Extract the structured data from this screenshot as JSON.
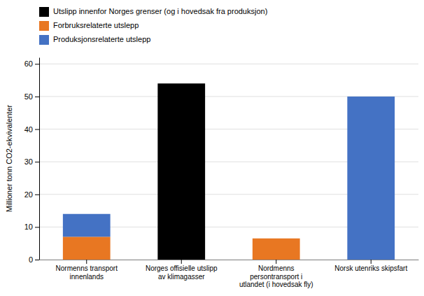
{
  "chart_data": {
    "type": "bar",
    "stacked": true,
    "categories": [
      "Normenns transport\ninnenlands",
      "Norges offisielle utslipp\nav klimagasser",
      "Nordmenns\npersontransport i\nutlandet (i hovedsak fly)",
      "Norsk utenriks skipsfart"
    ],
    "series": [
      {
        "name": "Utslipp innenfor Norges grenser (og i hovedsak fra produksjon)",
        "color": "#000000",
        "values": [
          0,
          54,
          0,
          0
        ]
      },
      {
        "name": "Forbruksrelaterte utslepp",
        "color": "#E87722",
        "values": [
          7,
          0,
          6.5,
          0
        ]
      },
      {
        "name": "Produksjonsrelaterte utslepp",
        "color": "#4472C4",
        "values": [
          7,
          0,
          0,
          50
        ]
      }
    ],
    "y_label": "Millioner tonn CO2-ekvivalenter",
    "ylim": [
      0,
      62
    ],
    "yticks": [
      0,
      10,
      20,
      30,
      40,
      50,
      60
    ],
    "grid": true,
    "legend": "upper left"
  }
}
